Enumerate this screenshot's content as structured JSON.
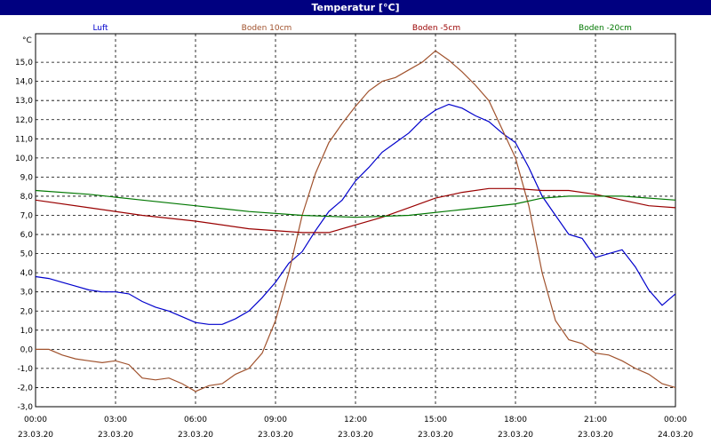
{
  "window_title": "Temperatur [°C]",
  "chart_data": {
    "type": "line",
    "title": "Temperatur [°C]",
    "ylabel": "°C",
    "ylim": [
      -3,
      16
    ],
    "grid": true,
    "legend_placement": "top",
    "y_ticks": [
      "-3,0",
      "-2,0",
      "-1,0",
      "0,0",
      "1,0",
      "2,0",
      "3,0",
      "4,0",
      "5,0",
      "6,0",
      "7,0",
      "8,0",
      "9,0",
      "10,0",
      "11,0",
      "12,0",
      "13,0",
      "14,0",
      "15,0"
    ],
    "x_ticks": [
      {
        "time": "00:00",
        "date": "23.03.20"
      },
      {
        "time": "03:00",
        "date": "23.03.20"
      },
      {
        "time": "06:00",
        "date": "23.03.20"
      },
      {
        "time": "09:00",
        "date": "23.03.20"
      },
      {
        "time": "12:00",
        "date": "23.03.20"
      },
      {
        "time": "15:00",
        "date": "23.03.20"
      },
      {
        "time": "18:00",
        "date": "23.03.20"
      },
      {
        "time": "21:00",
        "date": "23.03.20"
      },
      {
        "time": "00:00",
        "date": "24.03.20"
      }
    ],
    "x_unit": "hours since 23.03.20 00:00",
    "series": [
      {
        "name": "Luft",
        "color": "#0000cc",
        "points": [
          [
            0,
            3.8
          ],
          [
            0.5,
            3.7
          ],
          [
            1,
            3.5
          ],
          [
            1.5,
            3.3
          ],
          [
            2,
            3.1
          ],
          [
            2.5,
            3.0
          ],
          [
            3,
            3.0
          ],
          [
            3.5,
            2.9
          ],
          [
            4,
            2.5
          ],
          [
            4.5,
            2.2
          ],
          [
            5,
            2.0
          ],
          [
            5.5,
            1.7
          ],
          [
            6,
            1.4
          ],
          [
            6.5,
            1.3
          ],
          [
            7,
            1.3
          ],
          [
            7.5,
            1.6
          ],
          [
            8,
            2.0
          ],
          [
            8.5,
            2.7
          ],
          [
            9,
            3.5
          ],
          [
            9.5,
            4.5
          ],
          [
            10,
            5.1
          ],
          [
            10.5,
            6.2
          ],
          [
            11,
            7.2
          ],
          [
            11.5,
            7.8
          ],
          [
            12,
            8.8
          ],
          [
            12.5,
            9.5
          ],
          [
            13,
            10.3
          ],
          [
            13.5,
            10.8
          ],
          [
            14,
            11.3
          ],
          [
            14.5,
            12.0
          ],
          [
            15,
            12.5
          ],
          [
            15.5,
            12.8
          ],
          [
            16,
            12.6
          ],
          [
            16.5,
            12.2
          ],
          [
            17,
            11.9
          ],
          [
            17.5,
            11.3
          ],
          [
            18,
            10.8
          ],
          [
            18.5,
            9.5
          ],
          [
            19,
            8.0
          ],
          [
            19.5,
            7.0
          ],
          [
            20,
            6.0
          ],
          [
            20.5,
            5.8
          ],
          [
            21,
            4.8
          ],
          [
            21.5,
            5.0
          ],
          [
            22,
            5.2
          ],
          [
            22.5,
            4.3
          ],
          [
            23,
            3.1
          ],
          [
            23.5,
            2.3
          ],
          [
            24,
            2.9
          ]
        ]
      },
      {
        "name": "Boden 10cm",
        "color": "#a0522d",
        "points": [
          [
            0,
            0.0
          ],
          [
            0.5,
            0.0
          ],
          [
            1,
            -0.3
          ],
          [
            1.5,
            -0.5
          ],
          [
            2,
            -0.6
          ],
          [
            2.5,
            -0.7
          ],
          [
            3,
            -0.6
          ],
          [
            3.5,
            -0.8
          ],
          [
            4,
            -1.5
          ],
          [
            4.5,
            -1.6
          ],
          [
            5,
            -1.5
          ],
          [
            5.5,
            -1.8
          ],
          [
            6,
            -2.2
          ],
          [
            6.5,
            -1.9
          ],
          [
            7,
            -1.8
          ],
          [
            7.5,
            -1.3
          ],
          [
            8,
            -1.0
          ],
          [
            8.5,
            -0.2
          ],
          [
            9,
            1.5
          ],
          [
            9.5,
            4.0
          ],
          [
            10,
            7.0
          ],
          [
            10.5,
            9.2
          ],
          [
            11,
            10.8
          ],
          [
            11.5,
            11.8
          ],
          [
            12,
            12.7
          ],
          [
            12.5,
            13.5
          ],
          [
            13,
            14.0
          ],
          [
            13.5,
            14.2
          ],
          [
            14,
            14.6
          ],
          [
            14.5,
            15.0
          ],
          [
            15,
            15.6
          ],
          [
            15.5,
            15.1
          ],
          [
            16,
            14.5
          ],
          [
            16.5,
            13.8
          ],
          [
            17,
            13.0
          ],
          [
            17.5,
            11.5
          ],
          [
            18,
            10.0
          ],
          [
            18.5,
            7.5
          ],
          [
            19,
            4.0
          ],
          [
            19.5,
            1.5
          ],
          [
            20,
            0.5
          ],
          [
            20.5,
            0.3
          ],
          [
            21,
            -0.2
          ],
          [
            21.5,
            -0.3
          ],
          [
            22,
            -0.6
          ],
          [
            22.5,
            -1.0
          ],
          [
            23,
            -1.3
          ],
          [
            23.5,
            -1.8
          ],
          [
            24,
            -2.0
          ]
        ]
      },
      {
        "name": "Boden -5cm",
        "color": "#990000",
        "points": [
          [
            0,
            7.8
          ],
          [
            2,
            7.4
          ],
          [
            4,
            7.0
          ],
          [
            6,
            6.7
          ],
          [
            8,
            6.3
          ],
          [
            10,
            6.1
          ],
          [
            11,
            6.1
          ],
          [
            12,
            6.5
          ],
          [
            13,
            6.9
          ],
          [
            14,
            7.4
          ],
          [
            15,
            7.9
          ],
          [
            16,
            8.2
          ],
          [
            17,
            8.4
          ],
          [
            18,
            8.4
          ],
          [
            19,
            8.3
          ],
          [
            20,
            8.3
          ],
          [
            21,
            8.1
          ],
          [
            22,
            7.8
          ],
          [
            23,
            7.5
          ],
          [
            24,
            7.4
          ]
        ]
      },
      {
        "name": "Boden -20cm",
        "color": "#007700",
        "points": [
          [
            0,
            8.3
          ],
          [
            2,
            8.1
          ],
          [
            4,
            7.8
          ],
          [
            6,
            7.5
          ],
          [
            8,
            7.2
          ],
          [
            10,
            7.0
          ],
          [
            12,
            6.9
          ],
          [
            14,
            7.0
          ],
          [
            16,
            7.3
          ],
          [
            18,
            7.6
          ],
          [
            19,
            7.9
          ],
          [
            20,
            8.0
          ],
          [
            22,
            8.0
          ],
          [
            24,
            7.8
          ]
        ]
      }
    ]
  }
}
